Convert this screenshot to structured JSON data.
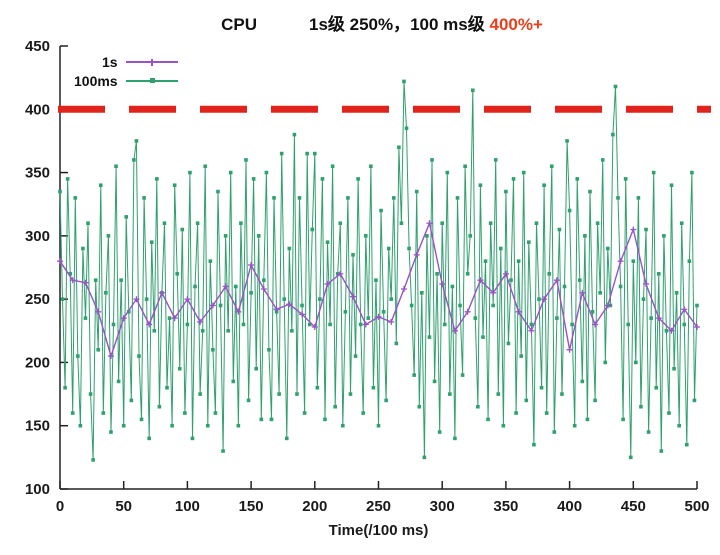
{
  "chart_data": {
    "type": "line",
    "title": "CPU",
    "annotation_prefix": "1s级 250%，100 ms级 ",
    "annotation_value": "400%+",
    "annotation_value_color": "#e8401c",
    "xlabel": "Time(/100 ms)",
    "ylabel": "",
    "xlim": [
      0,
      500
    ],
    "ylim": [
      100,
      450
    ],
    "x_ticks": [
      0,
      50,
      100,
      150,
      200,
      250,
      300,
      350,
      400,
      450,
      500
    ],
    "y_ticks": [
      100,
      150,
      200,
      250,
      300,
      350,
      400,
      450
    ],
    "grid": false,
    "legend_position": "top-left",
    "threshold": {
      "value": 400,
      "color": "#e0241b",
      "dash": [
        47,
        24
      ],
      "thickness": 7
    },
    "series": [
      {
        "name": "1s",
        "color": "#9a52c7",
        "marker": "plus",
        "x_start": 0,
        "x_step": 10,
        "values": [
          280,
          265,
          263,
          240,
          205,
          235,
          250,
          230,
          255,
          235,
          250,
          232,
          245,
          260,
          240,
          277,
          258,
          242,
          246,
          238,
          228,
          262,
          270,
          252,
          230,
          236,
          232,
          258,
          285,
          310,
          262,
          225,
          240,
          265,
          255,
          270,
          240,
          225,
          250,
          265,
          210,
          255,
          230,
          245,
          280,
          305,
          262,
          235,
          225,
          242,
          228
        ]
      },
      {
        "name": "100ms",
        "color": "#2fa06e",
        "marker": "square",
        "x_start": 0,
        "x_step": 2,
        "values": [
          335,
          250,
          180,
          345,
          270,
          160,
          330,
          205,
          150,
          290,
          235,
          310,
          175,
          123,
          265,
          210,
          340,
          160,
          255,
          300,
          145,
          230,
          355,
          185,
          265,
          150,
          315,
          240,
          170,
          360,
          375,
          205,
          155,
          330,
          250,
          140,
          295,
          225,
          345,
          165,
          255,
          310,
          180,
          235,
          150,
          340,
          270,
          195,
          305,
          160,
          230,
          350,
          140,
          260,
          310,
          175,
          225,
          355,
          150,
          280,
          210,
          160,
          335,
          245,
          130,
          300,
          225,
          350,
          185,
          260,
          150,
          310,
          230,
          360,
          170,
          255,
          345,
          195,
          300,
          155,
          265,
          350,
          210,
          155,
          330,
          240,
          175,
          365,
          250,
          140,
          290,
          225,
          380,
          175,
          330,
          245,
          160,
          365,
          230,
          305,
          365,
          180,
          250,
          345,
          155,
          295,
          230,
          355,
          165,
          270,
          310,
          150,
          240,
          330,
          175,
          285,
          205,
          345,
          230,
          160,
          300,
          235,
          355,
          180,
          265,
          150,
          320,
          240,
          170,
          290,
          250,
          330,
          215,
          370,
          310,
          422,
          385,
          290,
          245,
          190,
          335,
          165,
          255,
          125,
          300,
          220,
          360,
          185,
          270,
          145,
          310,
          230,
          350,
          175,
          260,
          140,
          330,
          245,
          190,
          355,
          270,
          300,
          415,
          235,
          165,
          340,
          220,
          280,
          155,
          310,
          245,
          360,
          175,
          290,
          150,
          335,
          215,
          265,
          345,
          160,
          280,
          205,
          350,
          170,
          295,
          230,
          135,
          310,
          250,
          180,
          340,
          160,
          270,
          355,
          145,
          235,
          305,
          175,
          260,
          375,
          320,
          230,
          150,
          345,
          265,
          185,
          300,
          155,
          335,
          240,
          170,
          310,
          255,
          360,
          200,
          290,
          245,
          380,
          418,
          330,
          260,
          155,
          345,
          230,
          125,
          280,
          200,
          330,
          165,
          250,
          305,
          145,
          235,
          350,
          180,
          270,
          130,
          300,
          225,
          160,
          340,
          195,
          255,
          150,
          310,
          230,
          135,
          280,
          350,
          170,
          245
        ]
      }
    ]
  }
}
